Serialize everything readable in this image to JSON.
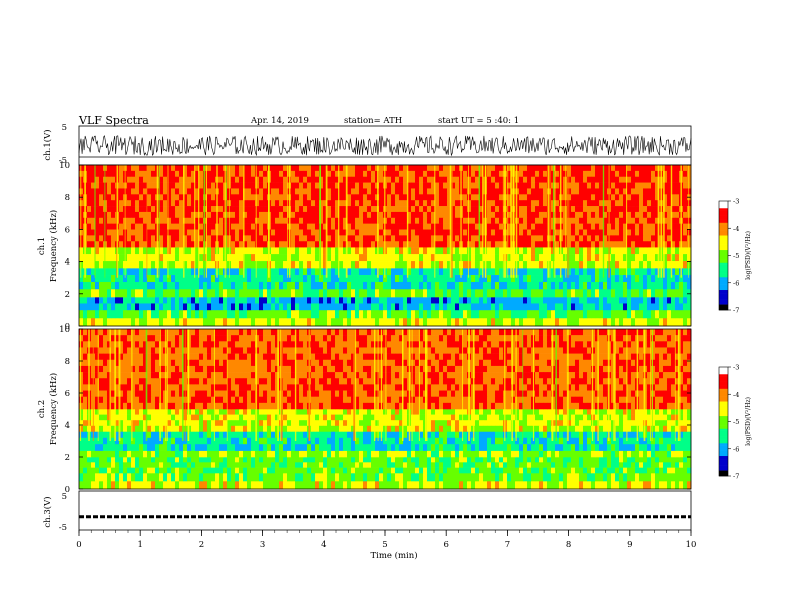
{
  "header": {
    "title": "VLF Spectra",
    "date": "Apr. 14, 2019",
    "station": "station= ATH",
    "start": "start UT = 5 :40: 1"
  },
  "colors": {
    "ch_trace": "#000000",
    "colormap": [
      "#000000",
      "#0000cc",
      "#00aaff",
      "#00ff88",
      "#66ff00",
      "#ffff00",
      "#ff8800",
      "#ff0000",
      "#ffffff"
    ]
  },
  "chart_data": [
    {
      "type": "line",
      "ylabel": "ch.1(V)",
      "ylim": [
        -5,
        5
      ],
      "yticks": [
        "5",
        "-5"
      ],
      "xlim": [
        0,
        10
      ],
      "description_values": {
        "amplitude_range": [
          -2.5,
          2.5
        ]
      }
    },
    {
      "type": "heatmap",
      "ylabel_top": "ch.1",
      "ylabel": "Frequency (kHz)",
      "ylim": [
        0,
        10
      ],
      "yticks": [
        "0",
        "2",
        "4",
        "6",
        "8",
        "10"
      ],
      "xlim": [
        0,
        10
      ],
      "colorbar": {
        "label": "log(PSD)(V²/Hz)",
        "ticks": [
          "-3",
          "-4",
          "-5",
          "-6",
          "-7"
        ],
        "range": [
          -7,
          -3
        ]
      },
      "bands_log_psd": [
        {
          "f": [
            0,
            0.5
          ],
          "v": -4.6
        },
        {
          "f": [
            0.5,
            1.0
          ],
          "v": -5.1
        },
        {
          "f": [
            1.0,
            1.8
          ],
          "v": -5.9
        },
        {
          "f": [
            1.8,
            2.3
          ],
          "v": -5.1
        },
        {
          "f": [
            2.3,
            3.6
          ],
          "v": -5.6
        },
        {
          "f": [
            3.6,
            4.9
          ],
          "v": -4.6
        },
        {
          "f": [
            4.9,
            10.0
          ],
          "v": -3.7
        }
      ]
    },
    {
      "type": "heatmap",
      "ylabel_top": "ch.2",
      "ylabel": "Frequency (kHz)",
      "ylim": [
        0,
        10
      ],
      "yticks": [
        "0",
        "2",
        "4",
        "6",
        "8",
        "10"
      ],
      "xlim": [
        0,
        10
      ],
      "colorbar": {
        "label": "log(PSD)(V²/Hz)",
        "ticks": [
          "-3",
          "-4",
          "-5",
          "-6",
          "-7"
        ],
        "range": [
          -7,
          -3
        ]
      },
      "bands_log_psd": [
        {
          "f": [
            0,
            0.5
          ],
          "v": -4.6
        },
        {
          "f": [
            0.5,
            1.0
          ],
          "v": -5.0
        },
        {
          "f": [
            1.0,
            2.0
          ],
          "v": -5.1
        },
        {
          "f": [
            2.0,
            2.4
          ],
          "v": -4.9
        },
        {
          "f": [
            2.4,
            3.6
          ],
          "v": -5.6
        },
        {
          "f": [
            3.6,
            5.0
          ],
          "v": -4.6
        },
        {
          "f": [
            5.0,
            10.0
          ],
          "v": -3.8
        }
      ]
    },
    {
      "type": "line",
      "ylabel": "ch.3(V)",
      "ylim": [
        -5,
        5
      ],
      "yticks": [
        "5",
        "-5"
      ],
      "xlim": [
        0,
        10
      ],
      "xlabel": "Time (min)",
      "xticks": [
        "0",
        "1",
        "2",
        "3",
        "4",
        "5",
        "6",
        "7",
        "8",
        "9",
        "10"
      ],
      "description_values": {
        "level": -1.6
      }
    }
  ]
}
